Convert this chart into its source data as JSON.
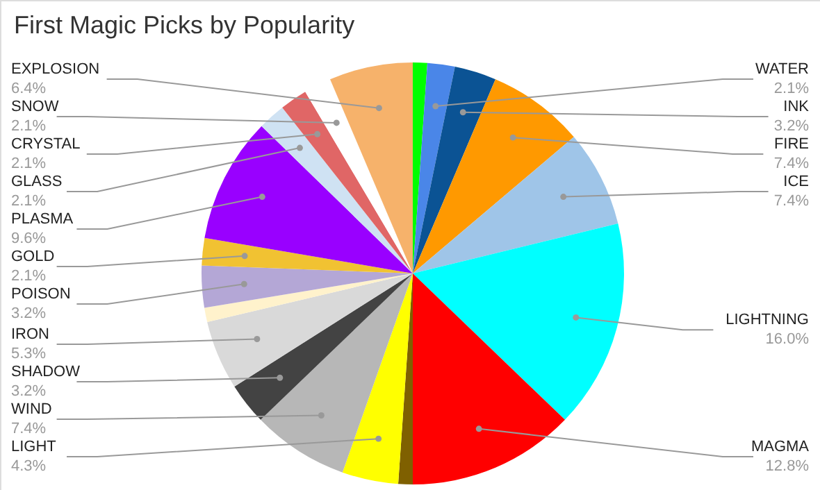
{
  "chart_data": {
    "type": "pie",
    "title": "First Magic Picks by Popularity",
    "categories": [
      null,
      "WATER",
      "INK",
      "FIRE",
      "ICE",
      "LIGHTNING",
      "MAGMA",
      null,
      "LIGHT",
      "WIND",
      "SHADOW",
      "IRON",
      null,
      "POISON",
      "GOLD",
      "PLASMA",
      "GLASS",
      "CRYSTAL",
      "SNOW",
      "EXPLOSION"
    ],
    "values": [
      1.1,
      2.1,
      3.2,
      7.4,
      7.4,
      16.0,
      12.8,
      1.1,
      4.3,
      7.4,
      3.2,
      5.3,
      1.1,
      3.2,
      2.1,
      9.6,
      2.1,
      2.1,
      2.1,
      6.4
    ],
    "colors": [
      "#00ff00",
      "#4a86e8",
      "#0b5394",
      "#ff9900",
      "#9fc5e8",
      "#00ffff",
      "#ff0000",
      "#7f6000",
      "#ffff00",
      "#b7b7b7",
      "#434343",
      "#d9d9d9",
      "#fff2cc",
      "#b4a7d6",
      "#f1c232",
      "#9900ff",
      "#cfe2f3",
      "#e06666",
      "#ffffff",
      "#f6b26b"
    ],
    "value_labels": [
      null,
      "2.1%",
      "3.2%",
      "7.4%",
      "7.4%",
      "16.0%",
      "12.8%",
      null,
      "4.3%",
      "7.4%",
      "3.2%",
      "5.3%",
      null,
      "3.2%",
      "2.1%",
      "9.6%",
      "2.1%",
      "2.1%",
      "2.1%",
      "6.4%"
    ]
  }
}
